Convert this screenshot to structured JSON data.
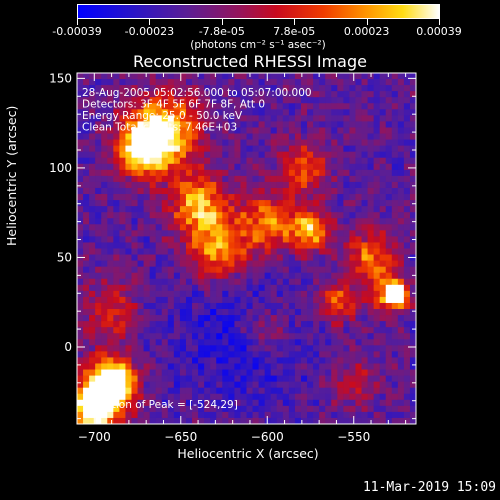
{
  "colorbar": {
    "tick_labels": [
      "-0.00039",
      "-0.00023",
      "-7.8e-05",
      "7.8e-05",
      "0.00023",
      "0.00039"
    ],
    "units": "(photons cm⁻² s⁻¹ asec⁻²)"
  },
  "chart_data": {
    "type": "heatmap",
    "title": "Reconstructed RHESSI Image",
    "xlabel": "Heliocentric X (arcsec)",
    "ylabel": "Heliocentric Y (arcsec)",
    "xlim": [
      -710,
      -514
    ],
    "ylim": [
      -43,
      153
    ],
    "x_ticks": [
      -700,
      -650,
      -600,
      -550
    ],
    "y_ticks": [
      0,
      50,
      100,
      150
    ],
    "value_range": [
      -0.00039,
      0.00039
    ],
    "annotations": [
      "28-Aug-2005 05:02:56.000 to 05:07:00.000",
      "Detectors: 3F 4F 5F 6F 7F 8F, Att 0",
      "Energy Range: 25.0 - 50.0 keV",
      "Clean   Total counts: 7.46E+03"
    ],
    "peak_text": "Position of Peak = [-524,29]",
    "peak_position": [
      -524,
      29
    ]
  },
  "footer": {
    "timestamp": "11-Mar-2019 15:09"
  }
}
